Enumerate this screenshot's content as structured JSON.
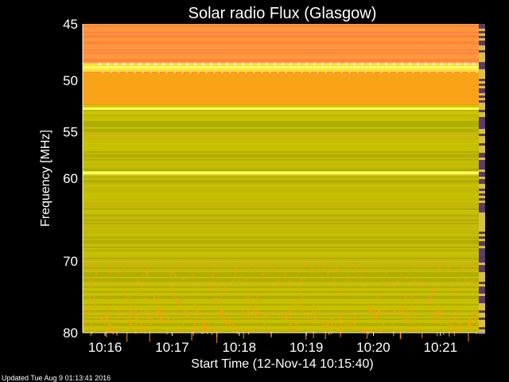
{
  "chart_data": {
    "type": "heatmap",
    "title": "Solar radio Flux (Glasgow)",
    "ylabel": "Frequency [MHz]",
    "xlabel": "Start Time (12-Nov-14 10:15:40)",
    "y_ticks": [
      45,
      50,
      55,
      60,
      70,
      80
    ],
    "y_tick_labels": [
      "45",
      "50",
      "55",
      "60",
      "70",
      "80"
    ],
    "ylim": [
      45,
      80
    ],
    "y_scale": "log",
    "x_ticks": [
      "10:16",
      "10:17",
      "10:18",
      "10:19",
      "10:20",
      "10:21"
    ],
    "xlim": [
      "10:15:40",
      "10:21:40"
    ],
    "colors": {
      "background": "#000000",
      "hot": "#ff8a3c",
      "warm": "#ffa020",
      "mid": "#c8c200",
      "low": "#b8b400",
      "line": "#ffff60"
    },
    "bands": [
      {
        "from": 45,
        "to": 48.4,
        "level": "hot"
      },
      {
        "from": 48.4,
        "to": 49.2,
        "level": "line"
      },
      {
        "from": 49.2,
        "to": 52.3,
        "level": "warm"
      },
      {
        "from": 52.3,
        "to": 53.5,
        "level": "mid"
      },
      {
        "from": 53.5,
        "to": 59.2,
        "level": "low"
      },
      {
        "from": 59.2,
        "to": 59.6,
        "level": "line"
      },
      {
        "from": 59.6,
        "to": 80,
        "level": "low"
      }
    ],
    "bright_lines_mhz": [
      48.8,
      52.7,
      59.4
    ]
  },
  "footer": {
    "updated": "Updated Tue Aug  9 01:13:41 2016"
  }
}
